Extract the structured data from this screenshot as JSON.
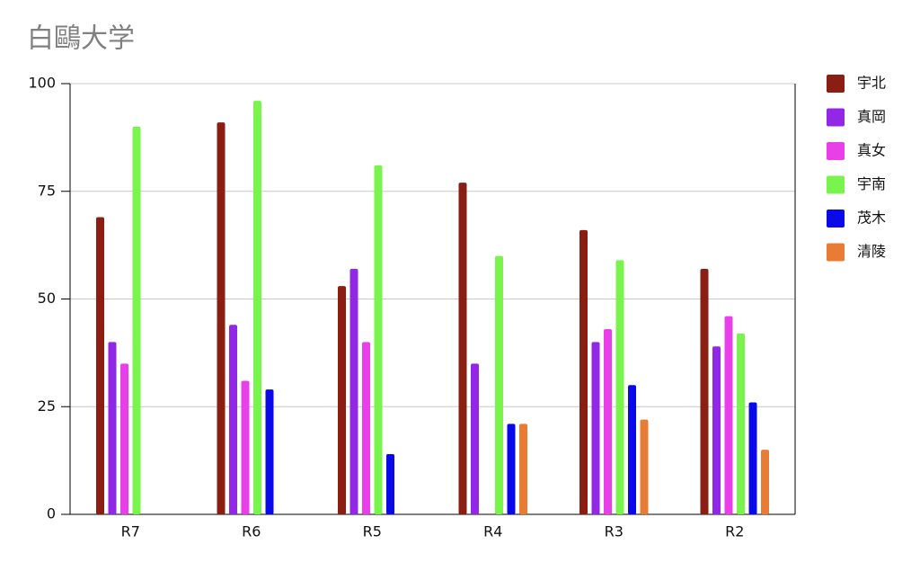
{
  "chart_data": {
    "type": "bar",
    "title": "白鷗大学",
    "categories": [
      "R7",
      "R6",
      "R5",
      "R4",
      "R3",
      "R2"
    ],
    "series": [
      {
        "name": "宇北",
        "color": "#8b1e12",
        "values": [
          69,
          91,
          53,
          77,
          66,
          57
        ]
      },
      {
        "name": "真岡",
        "color": "#9228e6",
        "values": [
          40,
          44,
          57,
          35,
          40,
          39
        ]
      },
      {
        "name": "真女",
        "color": "#e93fe9",
        "values": [
          35,
          31,
          40,
          null,
          43,
          46
        ]
      },
      {
        "name": "宇南",
        "color": "#79f44d",
        "values": [
          90,
          96,
          81,
          60,
          59,
          42
        ]
      },
      {
        "name": "茂木",
        "color": "#0a0ae8",
        "values": [
          null,
          29,
          14,
          21,
          30,
          26
        ]
      },
      {
        "name": "清陵",
        "color": "#e97c34",
        "values": [
          null,
          null,
          null,
          21,
          22,
          15
        ]
      }
    ],
    "ylim": [
      0,
      100
    ],
    "yticks": [
      0,
      25,
      50,
      75,
      100
    ],
    "grid": true,
    "legend": "right"
  }
}
